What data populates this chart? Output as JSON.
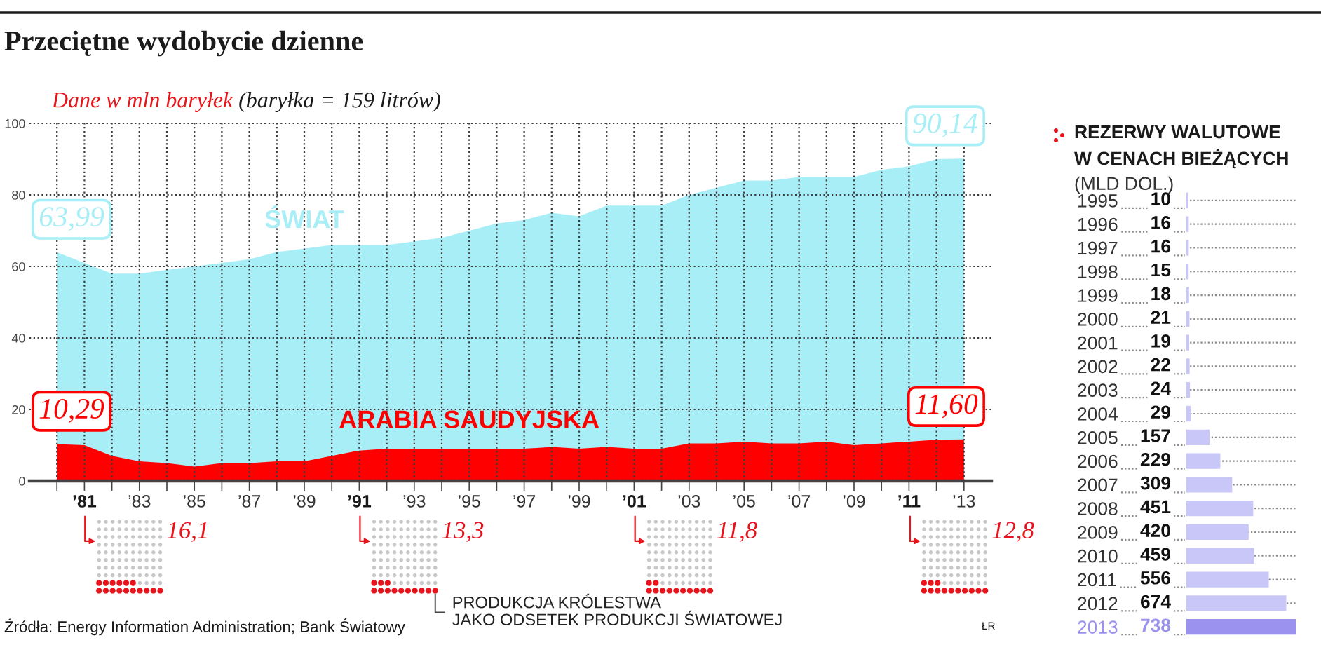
{
  "chart_data": [
    {
      "type": "area",
      "title": "Przeciętne wydobycie dzienne",
      "ylabel": "Dane w mln baryłek",
      "annotations": [
        "(baryłka = 159 litrów)",
        "Źródła: Energy Information Administration; Bank Światowy",
        "ŁR"
      ],
      "x": [
        1980,
        1981,
        1982,
        1983,
        1984,
        1985,
        1986,
        1987,
        1988,
        1989,
        1990,
        1991,
        1992,
        1993,
        1994,
        1995,
        1996,
        1997,
        1998,
        1999,
        2000,
        2001,
        2002,
        2003,
        2004,
        2005,
        2006,
        2007,
        2008,
        2009,
        2010,
        2011,
        2012,
        2013
      ],
      "series": [
        {
          "name": "ŚWIAT",
          "color": "#a8eef7",
          "values": [
            63.99,
            61,
            58,
            58,
            59,
            60,
            61,
            62,
            64,
            65,
            66,
            66,
            66,
            67,
            68,
            70,
            72,
            73,
            75,
            74,
            77,
            77,
            77,
            80,
            82,
            84,
            84,
            85,
            85,
            85,
            87,
            88,
            90,
            90.14
          ],
          "value_labels": [
            "63,99",
            null,
            null,
            null,
            null,
            null,
            null,
            null,
            null,
            null,
            null,
            null,
            null,
            null,
            null,
            null,
            null,
            null,
            null,
            null,
            null,
            null,
            null,
            null,
            null,
            null,
            null,
            null,
            null,
            null,
            null,
            null,
            null,
            "90,14"
          ]
        },
        {
          "name": "ARABIA SAUDYJSKA",
          "color": "#ff0000",
          "values": [
            10.29,
            10,
            7,
            5.5,
            5,
            4,
            5,
            5,
            5.5,
            5.5,
            7,
            8.5,
            9,
            9,
            9,
            9,
            9,
            9,
            9.5,
            9,
            9.5,
            9,
            9,
            10.5,
            10.5,
            11,
            10.5,
            10.5,
            11,
            10,
            10.5,
            11,
            11.5,
            11.6
          ],
          "value_labels": [
            "10,29",
            null,
            null,
            null,
            null,
            null,
            null,
            null,
            null,
            null,
            null,
            null,
            null,
            null,
            null,
            null,
            null,
            null,
            null,
            null,
            null,
            null,
            null,
            null,
            null,
            null,
            null,
            null,
            null,
            null,
            null,
            null,
            null,
            "11,60"
          ]
        }
      ],
      "xlim": [
        1979,
        2014
      ],
      "xticks": [
        {
          "value": 1980,
          "label": null
        },
        {
          "value": 1981,
          "label": "’81"
        },
        {
          "value": 1982,
          "label": null
        },
        {
          "value": 1983,
          "label": "’83"
        },
        {
          "value": 1984,
          "label": null
        },
        {
          "value": 1985,
          "label": "’85"
        },
        {
          "value": 1986,
          "label": null
        },
        {
          "value": 1987,
          "label": "’87"
        },
        {
          "value": 1988,
          "label": null
        },
        {
          "value": 1989,
          "label": "’89"
        },
        {
          "value": 1990,
          "label": null
        },
        {
          "value": 1991,
          "label": "’91"
        },
        {
          "value": 1992,
          "label": null
        },
        {
          "value": 1993,
          "label": "’93"
        },
        {
          "value": 1994,
          "label": null
        },
        {
          "value": 1995,
          "label": "’95"
        },
        {
          "value": 1996,
          "label": null
        },
        {
          "value": 1997,
          "label": "’97"
        },
        {
          "value": 1998,
          "label": null
        },
        {
          "value": 1999,
          "label": "’99"
        },
        {
          "value": 2000,
          "label": null
        },
        {
          "value": 2001,
          "label": "’01"
        },
        {
          "value": 2002,
          "label": null
        },
        {
          "value": 2003,
          "label": "’03"
        },
        {
          "value": 2004,
          "label": null
        },
        {
          "value": 2005,
          "label": "’05"
        },
        {
          "value": 2006,
          "label": null
        },
        {
          "value": 2007,
          "label": "’07"
        },
        {
          "value": 2008,
          "label": null
        },
        {
          "value": 2009,
          "label": "’09"
        },
        {
          "value": 2010,
          "label": null
        },
        {
          "value": 2011,
          "label": "’11"
        },
        {
          "value": 2012,
          "label": null
        },
        {
          "value": 2013,
          "label": "’13"
        }
      ],
      "ylim": [
        0,
        100
      ],
      "yticks": [
        0,
        20,
        40,
        60,
        80,
        100
      ],
      "grid": true
    },
    {
      "type": "other",
      "categories": [
        null,
        null,
        null,
        null
      ],
      "values": [
        16.1,
        13.3,
        11.8,
        12.8
      ],
      "value_labels": [
        "16,1",
        "13,3",
        "11,8",
        "12,8"
      ],
      "color": "#e8141c",
      "annotations": [
        "PRODUKCJA KRÓLESTWA\nJAKO ODSETEK PRODUKCJI ŚWIATOWEJ"
      ]
    },
    {
      "type": "bar",
      "orientation": "horizontal",
      "title": "REZERWY WALUTOWE\nW CENACH BIEŻĄCYCH",
      "subtitle": "(MLD DOL.)",
      "categories": [
        "1995",
        "1996",
        "1997",
        "1998",
        "1999",
        "2000",
        "2001",
        "2002",
        "2003",
        "2004",
        "2005",
        "2006",
        "2007",
        "2008",
        "2009",
        "2010",
        "2011",
        "2012",
        "2013"
      ],
      "values": [
        10,
        16,
        16,
        15,
        18,
        21,
        19,
        22,
        24,
        29,
        157,
        229,
        309,
        451,
        420,
        459,
        556,
        674,
        738
      ],
      "colors": [
        "#c9c7f8",
        "#c9c7f8",
        "#c9c7f8",
        "#c9c7f8",
        "#c9c7f8",
        "#c9c7f8",
        "#c9c7f8",
        "#c9c7f8",
        "#c9c7f8",
        "#c9c7f8",
        "#c9c7f8",
        "#c9c7f8",
        "#c9c7f8",
        "#c9c7f8",
        "#c9c7f8",
        "#c9c7f8",
        "#c9c7f8",
        "#c9c7f8",
        "#9a92ee"
      ],
      "data_labels": true,
      "xlim": [
        0,
        738
      ],
      "tick_labels": "y",
      "grid": "y"
    }
  ]
}
